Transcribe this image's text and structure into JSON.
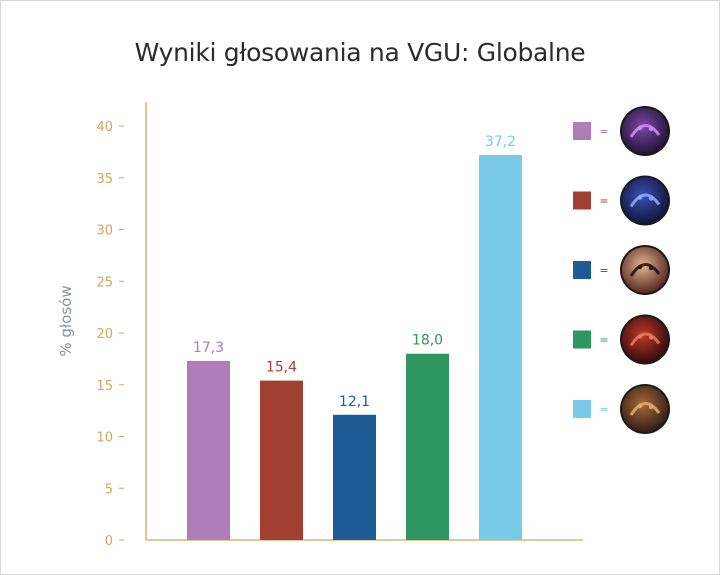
{
  "title": "Wyniki głosowania na VGU: Globalne",
  "chart_data": {
    "type": "bar",
    "title": "Wyniki głosowania na VGU: Globalne",
    "ylabel": "% głosów",
    "xlabel": "",
    "ylim": [
      0,
      40
    ],
    "yticks": [
      0,
      5,
      10,
      15,
      20,
      25,
      30,
      35,
      40
    ],
    "ytick_labels": [
      "0",
      "5",
      "10",
      "15",
      "20",
      "25",
      "30",
      "35",
      "40"
    ],
    "bars": [
      {
        "value": 17.3,
        "label": "17,3",
        "color": "#b07cb9"
      },
      {
        "value": 15.4,
        "label": "15,4",
        "color": "#a13f32"
      },
      {
        "value": 12.1,
        "label": "12,1",
        "color": "#1f5c97"
      },
      {
        "value": 18.0,
        "label": "18,0",
        "color": "#2e9660"
      },
      {
        "value": 37.2,
        "label": "37,2",
        "color": "#79c9e9"
      }
    ],
    "legend_placement": "right",
    "legend": [
      {
        "color": "#b07cb9",
        "sign": "=",
        "icon": "champion-portrait-purple-icon"
      },
      {
        "color": "#a13f32",
        "sign": "=",
        "icon": "champion-portrait-dark-blue-icon"
      },
      {
        "color": "#1f5c97",
        "sign": "=",
        "icon": "champion-portrait-warrior-icon"
      },
      {
        "color": "#2e9660",
        "sign": "=",
        "icon": "champion-portrait-red-dragon-icon"
      },
      {
        "color": "#79c9e9",
        "sign": "=",
        "icon": "champion-portrait-wolf-icon"
      }
    ],
    "axis_color": "#cfa85c",
    "ylabel_color": "#8a8f9a",
    "grid": false
  }
}
